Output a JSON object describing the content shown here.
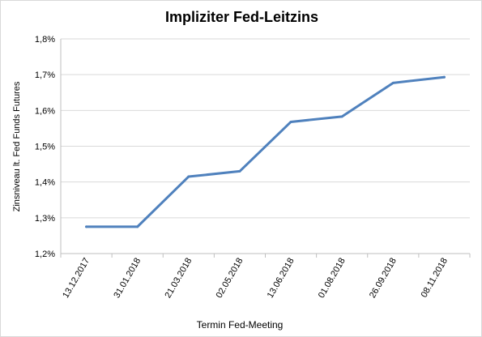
{
  "chart_data": {
    "type": "line",
    "title": "Impliziter Fed-Leitzins",
    "xlabel": "Termin Fed-Meeting",
    "ylabel": "Zinsniveau  lt. Fed Funds Futures",
    "categories": [
      "13.12.2017",
      "31.01.2018",
      "21.03.2018",
      "02.05.2018",
      "13.06.2018",
      "01.08.2018",
      "26.09.2018",
      "08.11.2018"
    ],
    "series": [
      {
        "values": [
          1.275,
          1.275,
          1.415,
          1.43,
          1.568,
          1.583,
          1.677,
          1.693
        ]
      }
    ],
    "ylim": [
      1.2,
      1.8
    ],
    "yticks": [
      "1,2%",
      "1,3%",
      "1,4%",
      "1,5%",
      "1,6%",
      "1,7%",
      "1,8%"
    ],
    "grid": true,
    "legend": "none",
    "line_color": "#4f81bd",
    "grid_color": "#d9d9d9"
  }
}
